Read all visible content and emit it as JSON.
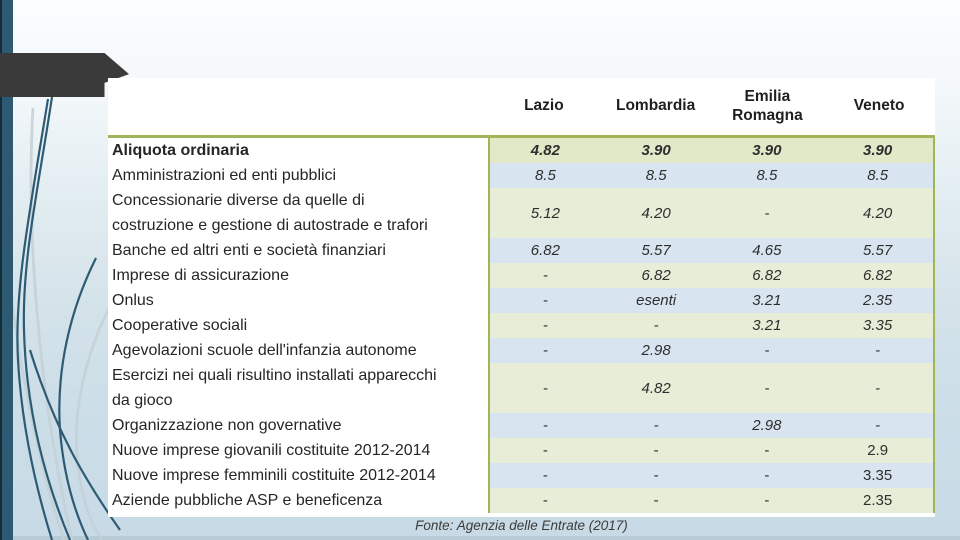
{
  "slide": {
    "footer": "Fonte: Agenzia delle Entrate (2017)",
    "colors": {
      "accent_green_border": "#9fb557",
      "row_green": "#e7edd7",
      "row_green_first": "#e1e9c8",
      "row_blue": "#d8e5f0",
      "teal_accent": "#2d5a72",
      "banner_dark": "#3a3a3a",
      "wisp_dark": "#2e5b74",
      "wisp_light": "#c5d2d8"
    }
  },
  "table": {
    "columns": [
      "Lazio",
      "Lombardia",
      "Emilia\nRomagna",
      "Veneto"
    ],
    "rows": [
      {
        "label": "Aliquota ordinaria",
        "bold": true,
        "lines": 1,
        "stripe": "green_first",
        "italic": true,
        "values": [
          "4.82",
          "3.90",
          "3.90",
          "3.90"
        ]
      },
      {
        "label": "Amministrazioni ed enti pubblici",
        "lines": 1,
        "stripe": "blue",
        "italic": true,
        "values": [
          "8.5",
          "8.5",
          "8.5",
          "8.5"
        ]
      },
      {
        "label": "Concessionarie diverse da quelle di\ncostruzione e gestione di autostrade e trafori",
        "lines": 2,
        "stripe": "green",
        "italic": true,
        "values": [
          "5.12",
          "4.20",
          "-",
          "4.20"
        ]
      },
      {
        "label": "Banche ed altri enti e società finanziari",
        "lines": 1,
        "stripe": "blue",
        "italic": true,
        "values": [
          "6.82",
          "5.57",
          "4.65",
          "5.57"
        ]
      },
      {
        "label": "Imprese di assicurazione",
        "lines": 1,
        "stripe": "green",
        "italic": true,
        "values": [
          "-",
          "6.82",
          "6.82",
          "6.82"
        ]
      },
      {
        "label": "Onlus",
        "lines": 1,
        "stripe": "blue",
        "italic": true,
        "values": [
          "-",
          "esenti",
          "3.21",
          "2.35"
        ]
      },
      {
        "label": "Cooperative sociali",
        "lines": 1,
        "stripe": "green",
        "italic": true,
        "values": [
          "-",
          "-",
          "3.21",
          "3.35"
        ]
      },
      {
        "label": "Agevolazioni scuole dell'infanzia autonome",
        "lines": 1,
        "stripe": "blue",
        "italic": true,
        "values": [
          "-",
          "2.98",
          "-",
          "-"
        ]
      },
      {
        "label": "Esercizi nei quali risultino installati apparecchi\nda gioco",
        "lines": 2,
        "stripe": "green",
        "italic": true,
        "values": [
          "-",
          "4.82",
          "-",
          "-"
        ]
      },
      {
        "label": "Organizzazione non governative",
        "lines": 1,
        "stripe": "blue",
        "italic": true,
        "values": [
          "-",
          "-",
          "2.98",
          "-"
        ]
      },
      {
        "label": "Nuove imprese giovanili costituite 2012-2014",
        "lines": 1,
        "stripe": "green",
        "italic": false,
        "values": [
          "-",
          "-",
          "-",
          "2.9"
        ]
      },
      {
        "label": "Nuove imprese femminili costituite 2012-2014",
        "lines": 1,
        "stripe": "blue",
        "italic": false,
        "values": [
          "-",
          "-",
          "-",
          "3.35"
        ]
      },
      {
        "label": "Aziende pubbliche ASP e beneficenza",
        "lines": 1,
        "stripe": "green",
        "italic": false,
        "values": [
          "-",
          "-",
          "-",
          "2.35"
        ]
      }
    ]
  }
}
